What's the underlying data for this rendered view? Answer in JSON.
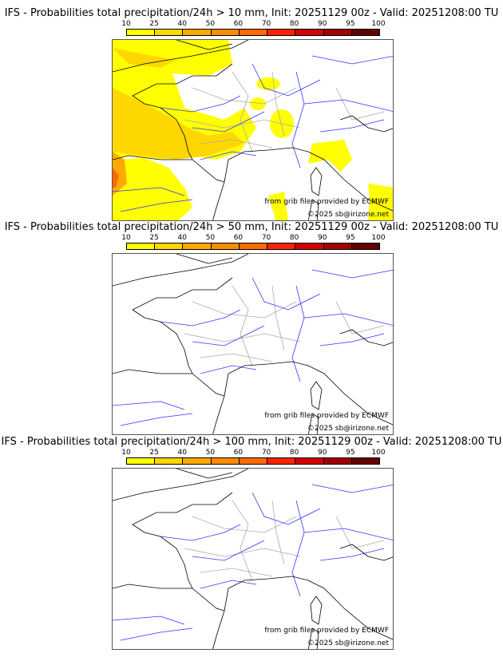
{
  "colorbar": {
    "ticks": [
      "10",
      "25",
      "40",
      "50",
      "60",
      "70",
      "80",
      "90",
      "95",
      "100"
    ],
    "colors": [
      "#ffff00",
      "#ffd700",
      "#ffaa00",
      "#ff8c00",
      "#ff6a00",
      "#ff2400",
      "#d40000",
      "#a00000",
      "#650000"
    ]
  },
  "panels": [
    {
      "title": "IFS - Probabilities total precipitation/24h > 10 mm, Init: 20251129 00z - Valid: 20251208:00 TU",
      "has_precip": true
    },
    {
      "title": "IFS - Probabilities total precipitation/24h > 50 mm, Init: 20251129 00z - Valid: 20251208:00 TU",
      "has_precip": false
    },
    {
      "title": "IFS - Probabilities total precipitation/24h > 100 mm, Init: 20251129 00z - Valid: 20251208:00 TU",
      "has_precip": false
    }
  ],
  "credits": {
    "source": "from grib files provided by ECMWF",
    "copyright": "©2025 sb@irizone.net"
  }
}
